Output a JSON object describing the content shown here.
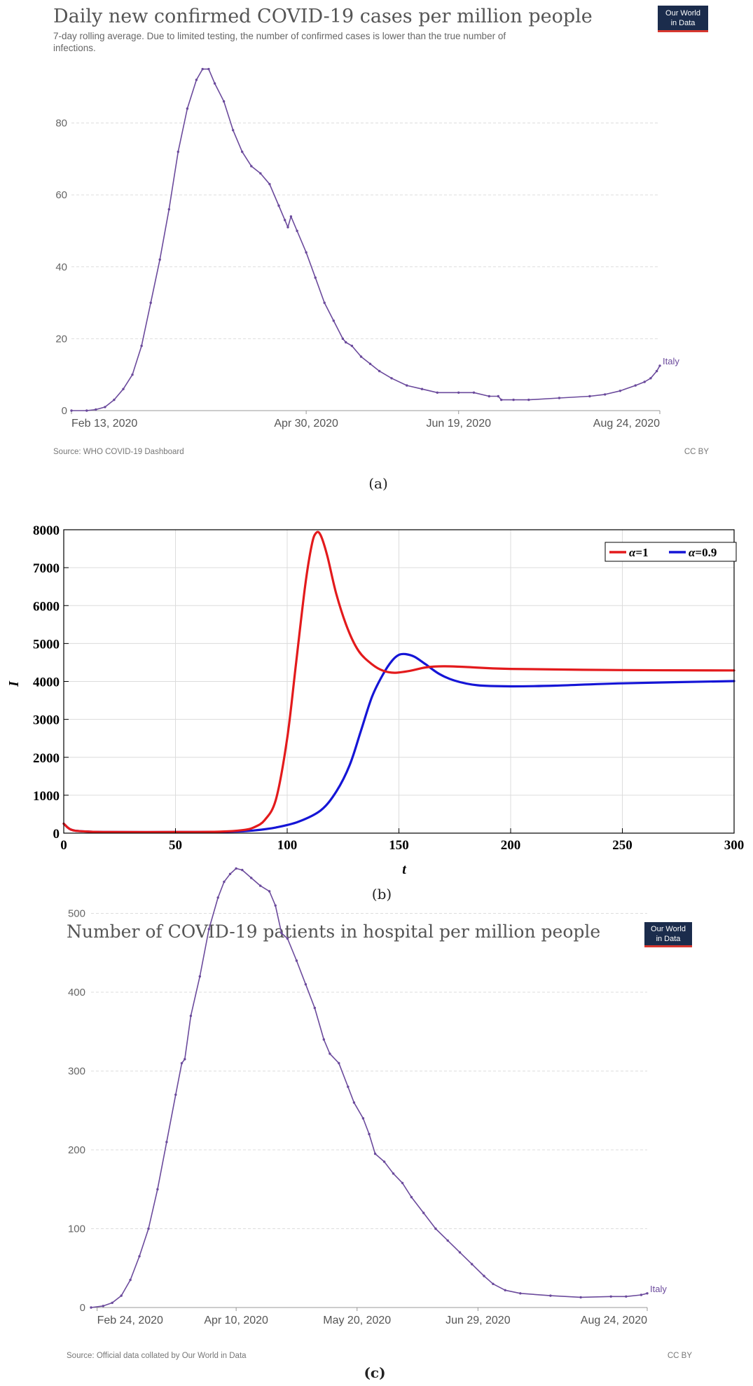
{
  "chart_data": [
    {
      "type": "line",
      "title": "Daily new confirmed COVID-19 cases per million people",
      "subtitle_lines": [
        "7-day rolling average. Due to limited testing, the number of confirmed cases is lower than the true number of",
        "infections."
      ],
      "logo": [
        "Our World",
        "in Data"
      ],
      "x_tick_labels": [
        "Feb 13, 2020",
        "Apr 30, 2020",
        "Jun 19, 2020",
        "Aug 24, 2020"
      ],
      "x_ticks_day": [
        0,
        77,
        127,
        193
      ],
      "x_range_day": [
        0,
        193
      ],
      "y_ticks": [
        0,
        20,
        40,
        60,
        80
      ],
      "ylim": [
        0,
        95.5
      ],
      "series": [
        {
          "name": "Italy",
          "color": "#6b4a9c",
          "points": [
            [
              0,
              0
            ],
            [
              5,
              0
            ],
            [
              8,
              0.3
            ],
            [
              11,
              1
            ],
            [
              14,
              3
            ],
            [
              17,
              6
            ],
            [
              20,
              10
            ],
            [
              23,
              18
            ],
            [
              26,
              30
            ],
            [
              29,
              42
            ],
            [
              32,
              56
            ],
            [
              35,
              72
            ],
            [
              38,
              84
            ],
            [
              41,
              92
            ],
            [
              43,
              95
            ],
            [
              45,
              95
            ],
            [
              47,
              91
            ],
            [
              50,
              86
            ],
            [
              53,
              78
            ],
            [
              56,
              72
            ],
            [
              59,
              68
            ],
            [
              62,
              66
            ],
            [
              65,
              63
            ],
            [
              68,
              57
            ],
            [
              70,
              53
            ],
            [
              71,
              51
            ],
            [
              72,
              54
            ],
            [
              74,
              50
            ],
            [
              77,
              44
            ],
            [
              80,
              37
            ],
            [
              83,
              30
            ],
            [
              86,
              25
            ],
            [
              89,
              20
            ],
            [
              90,
              19
            ],
            [
              92,
              18
            ],
            [
              95,
              15
            ],
            [
              98,
              13
            ],
            [
              101,
              11
            ],
            [
              105,
              9
            ],
            [
              110,
              7
            ],
            [
              115,
              6
            ],
            [
              120,
              5
            ],
            [
              127,
              5
            ],
            [
              132,
              5
            ],
            [
              137,
              4
            ],
            [
              140,
              4
            ],
            [
              141,
              3
            ],
            [
              145,
              3
            ],
            [
              150,
              3
            ],
            [
              160,
              3.5
            ],
            [
              170,
              4
            ],
            [
              175,
              4.5
            ],
            [
              180,
              5.5
            ],
            [
              185,
              7
            ],
            [
              188,
              8
            ],
            [
              190,
              9
            ],
            [
              192,
              11
            ],
            [
              193,
              12.5
            ]
          ]
        }
      ],
      "series_label": "Italy",
      "source": "Source: WHO COVID-19 Dashboard",
      "license": "CC BY",
      "caption": "(a)"
    },
    {
      "type": "line",
      "title": "",
      "xlabel": "t",
      "ylabel": "I",
      "xlim": [
        0,
        300
      ],
      "ylim": [
        0,
        8000
      ],
      "x_ticks": [
        0,
        50,
        100,
        150,
        200,
        250,
        300
      ],
      "y_ticks": [
        0,
        1000,
        2000,
        3000,
        4000,
        5000,
        6000,
        7000,
        8000
      ],
      "grid": true,
      "legend_position": "top-right",
      "series": [
        {
          "name": "α=1",
          "legend_symbol": "α",
          "legend_rest": "=1",
          "color": "#e31a1c",
          "points": [
            [
              0,
              250
            ],
            [
              3,
              100
            ],
            [
              8,
              50
            ],
            [
              20,
              30
            ],
            [
              50,
              30
            ],
            [
              70,
              40
            ],
            [
              80,
              80
            ],
            [
              85,
              150
            ],
            [
              90,
              350
            ],
            [
              95,
              900
            ],
            [
              100,
              2500
            ],
            [
              104,
              4500
            ],
            [
              108,
              6500
            ],
            [
              111,
              7600
            ],
            [
              113,
              7920
            ],
            [
              115,
              7850
            ],
            [
              118,
              7300
            ],
            [
              122,
              6300
            ],
            [
              127,
              5400
            ],
            [
              132,
              4800
            ],
            [
              138,
              4450
            ],
            [
              143,
              4280
            ],
            [
              148,
              4230
            ],
            [
              155,
              4280
            ],
            [
              162,
              4370
            ],
            [
              170,
              4400
            ],
            [
              180,
              4380
            ],
            [
              200,
              4330
            ],
            [
              250,
              4300
            ],
            [
              300,
              4290
            ]
          ]
        },
        {
          "name": "α=0.9",
          "legend_symbol": "α",
          "legend_rest": "=0.9",
          "color": "#1515d6",
          "points": [
            [
              0,
              250
            ],
            [
              3,
              100
            ],
            [
              8,
              50
            ],
            [
              20,
              30
            ],
            [
              50,
              30
            ],
            [
              75,
              40
            ],
            [
              85,
              70
            ],
            [
              95,
              150
            ],
            [
              105,
              300
            ],
            [
              115,
              600
            ],
            [
              122,
              1100
            ],
            [
              128,
              1800
            ],
            [
              133,
              2700
            ],
            [
              138,
              3600
            ],
            [
              143,
              4200
            ],
            [
              147,
              4550
            ],
            [
              150,
              4700
            ],
            [
              153,
              4720
            ],
            [
              157,
              4650
            ],
            [
              162,
              4450
            ],
            [
              168,
              4200
            ],
            [
              175,
              4020
            ],
            [
              185,
              3900
            ],
            [
              200,
              3870
            ],
            [
              220,
              3890
            ],
            [
              250,
              3950
            ],
            [
              300,
              4010
            ]
          ]
        }
      ],
      "caption": "(b)"
    },
    {
      "type": "line",
      "title": "Number of COVID-19 patients in hospital per million people",
      "logo": [
        "Our World",
        "in Data"
      ],
      "x_tick_labels": [
        "Feb 24, 2020",
        "Apr 10, 2020",
        "May 20, 2020",
        "Jun 29, 2020",
        "Aug 24, 2020"
      ],
      "x_ticks_day": [
        0,
        46,
        86,
        126,
        182
      ],
      "x_range_day": [
        -2,
        182
      ],
      "y_ticks": [
        0,
        100,
        200,
        300,
        400,
        500
      ],
      "ylim": [
        0,
        560
      ],
      "series": [
        {
          "name": "Italy",
          "color": "#6b4a9c",
          "points": [
            [
              -2,
              0
            ],
            [
              2,
              2
            ],
            [
              5,
              6
            ],
            [
              8,
              15
            ],
            [
              11,
              35
            ],
            [
              14,
              65
            ],
            [
              17,
              100
            ],
            [
              20,
              150
            ],
            [
              23,
              210
            ],
            [
              26,
              270
            ],
            [
              28,
              310
            ],
            [
              29,
              315
            ],
            [
              31,
              370
            ],
            [
              34,
              420
            ],
            [
              37,
              480
            ],
            [
              40,
              520
            ],
            [
              42,
              540
            ],
            [
              44,
              550
            ],
            [
              46,
              557
            ],
            [
              48,
              555
            ],
            [
              51,
              545
            ],
            [
              54,
              535
            ],
            [
              57,
              528
            ],
            [
              59,
              510
            ],
            [
              61,
              475
            ],
            [
              63,
              468
            ],
            [
              66,
              440
            ],
            [
              69,
              410
            ],
            [
              72,
              380
            ],
            [
              75,
              340
            ],
            [
              77,
              322
            ],
            [
              80,
              310
            ],
            [
              83,
              280
            ],
            [
              85,
              260
            ],
            [
              88,
              240
            ],
            [
              90,
              220
            ],
            [
              92,
              195
            ],
            [
              95,
              185
            ],
            [
              98,
              170
            ],
            [
              101,
              158
            ],
            [
              104,
              140
            ],
            [
              108,
              120
            ],
            [
              112,
              100
            ],
            [
              116,
              85
            ],
            [
              120,
              70
            ],
            [
              124,
              55
            ],
            [
              128,
              40
            ],
            [
              131,
              30
            ],
            [
              135,
              22
            ],
            [
              140,
              18
            ],
            [
              150,
              15
            ],
            [
              160,
              13
            ],
            [
              170,
              14
            ],
            [
              175,
              14
            ],
            [
              180,
              16
            ],
            [
              182,
              18
            ]
          ]
        }
      ],
      "series_label": "Italy",
      "source": "Source: Official data collated by Our World in Data",
      "license": "CC BY",
      "caption": "(c)"
    }
  ]
}
